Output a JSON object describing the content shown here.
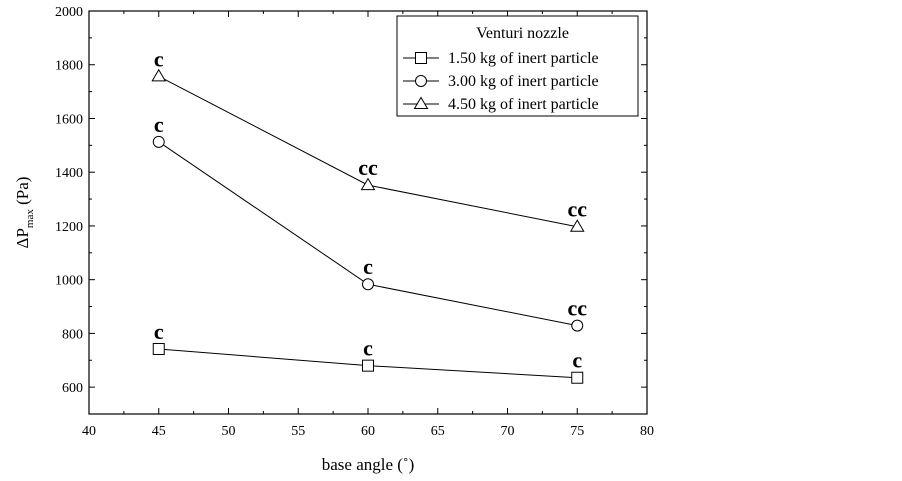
{
  "chart_data": {
    "type": "line",
    "xlabel": "base angle (˚)",
    "ylabel_main": "ΔP",
    "ylabel_sub": "max",
    "ylabel_unit": "(Pa)",
    "xlim": [
      40,
      80
    ],
    "ylim": [
      500,
      2000
    ],
    "xticks": [
      40,
      45,
      50,
      55,
      60,
      65,
      70,
      75,
      80
    ],
    "yticks": [
      600,
      800,
      1000,
      1200,
      1400,
      1600,
      1800,
      2000
    ],
    "legend": {
      "title": "Venturi nozzle",
      "placement": "top-right"
    },
    "series": [
      {
        "name": "1.50 kg of inert particle",
        "marker": "square",
        "x": [
          45,
          60,
          75
        ],
        "y": [
          742,
          680,
          635
        ],
        "annotations": [
          "c",
          "c",
          "c"
        ]
      },
      {
        "name": "3.00 kg of inert particle",
        "marker": "circle",
        "x": [
          45,
          60,
          75
        ],
        "y": [
          1513,
          983,
          829
        ],
        "annotations": [
          "c",
          "c",
          "cc"
        ]
      },
      {
        "name": "4.50 kg of inert particle",
        "marker": "triangle",
        "x": [
          45,
          60,
          75
        ],
        "y": [
          1757,
          1352,
          1197
        ],
        "annotations": [
          "c",
          "cc",
          "cc"
        ]
      }
    ]
  }
}
